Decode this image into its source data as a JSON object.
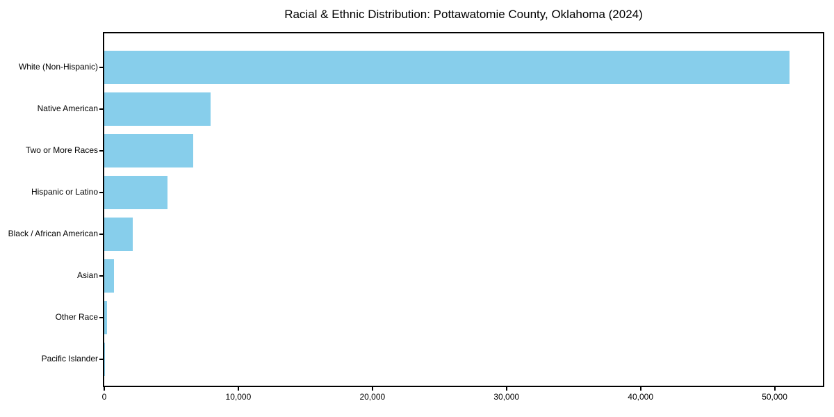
{
  "chart_data": {
    "type": "bar",
    "orientation": "horizontal",
    "title": "Racial & Ethnic Distribution: Pottawatomie County, Oklahoma (2024)",
    "categories": [
      "White (Non-Hispanic)",
      "Native American",
      "Two or More Races",
      "Hispanic or Latino",
      "Black / African American",
      "Asian",
      "Other Race",
      "Pacific Islander"
    ],
    "values": [
      51100,
      7950,
      6650,
      4700,
      2100,
      720,
      200,
      40
    ],
    "xlabel": "",
    "ylabel": "",
    "xlim": [
      0,
      53600
    ],
    "x_ticks": [
      0,
      10000,
      20000,
      30000,
      40000,
      50000
    ],
    "x_tick_labels": [
      "0",
      "10,000",
      "20,000",
      "30,000",
      "40,000",
      "50,000"
    ],
    "bar_color": "#87CEEB",
    "axis_color": "#000000",
    "background_color": "#ffffff",
    "grid": false,
    "legend": "none"
  }
}
